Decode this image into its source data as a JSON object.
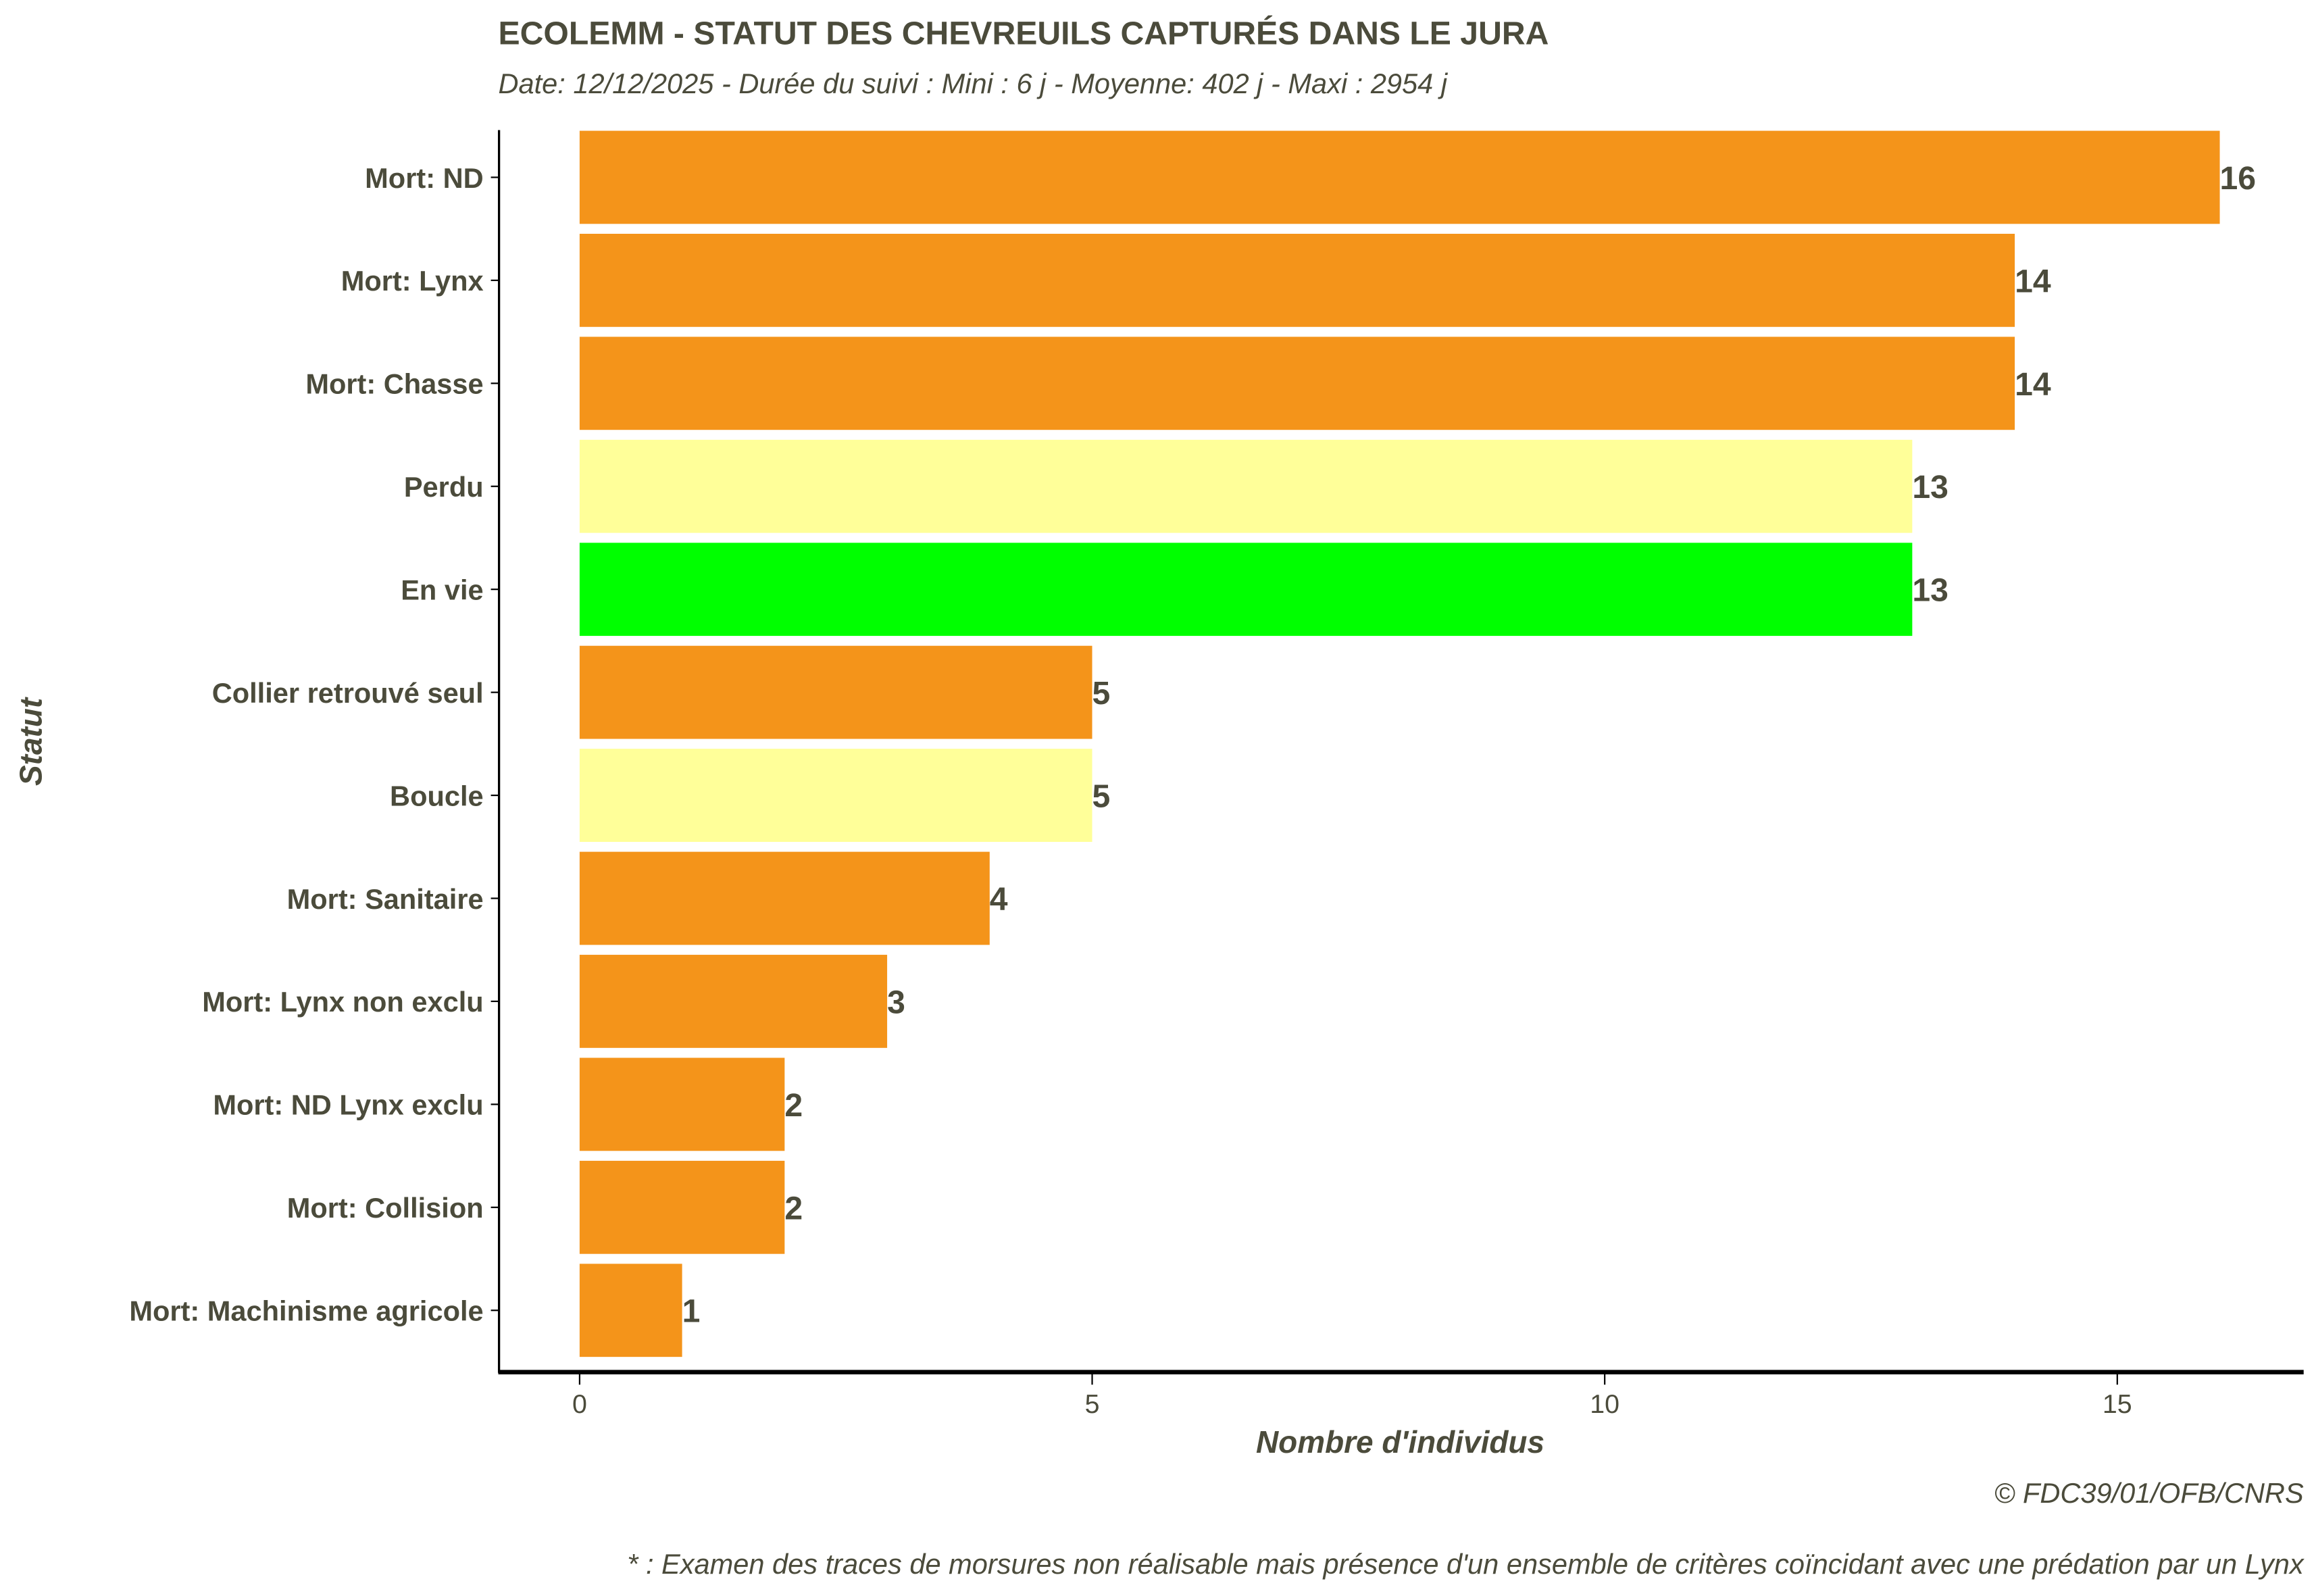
{
  "colors": {
    "orange": "#F4941A",
    "yellow": "#FFFF99",
    "green": "#00FF00"
  },
  "chart_data": {
    "type": "bar",
    "orientation": "horizontal",
    "title": "ECOLEMM - STATUT DES CHEVREUILS CAPTURÉS DANS LE JURA",
    "subtitle": "Date: 12/12/2025 -  Durée du suivi : Mini : 6 j - Moyenne: 402 j - Maxi : 2954 j",
    "xlabel": "Nombre d'individus",
    "ylabel": "Statut",
    "xlim": [
      0,
      16.8
    ],
    "xticks": [
      "0",
      "5",
      "10",
      "15"
    ],
    "grid": false,
    "categories": [
      "Mort: ND",
      "Mort: Lynx",
      "Mort: Chasse",
      "Perdu",
      "En vie",
      "Collier retrouvé seul",
      "Boucle",
      "Mort: Sanitaire",
      "Mort: Lynx non exclu",
      "Mort: ND Lynx exclu",
      "Mort: Collision",
      "Mort: Machinisme agricole"
    ],
    "values": [
      16,
      14,
      14,
      13,
      13,
      5,
      5,
      4,
      3,
      2,
      2,
      1
    ],
    "bar_colors": [
      "orange",
      "orange",
      "orange",
      "yellow",
      "green",
      "orange",
      "yellow",
      "orange",
      "orange",
      "orange",
      "orange",
      "orange"
    ],
    "caption": "© FDC39/01/OFB/CNRS",
    "footnote": "* : Examen des traces de morsures non réalisable mais présence d'un ensemble de critères coïncidant avec une prédation par un Lynx"
  }
}
